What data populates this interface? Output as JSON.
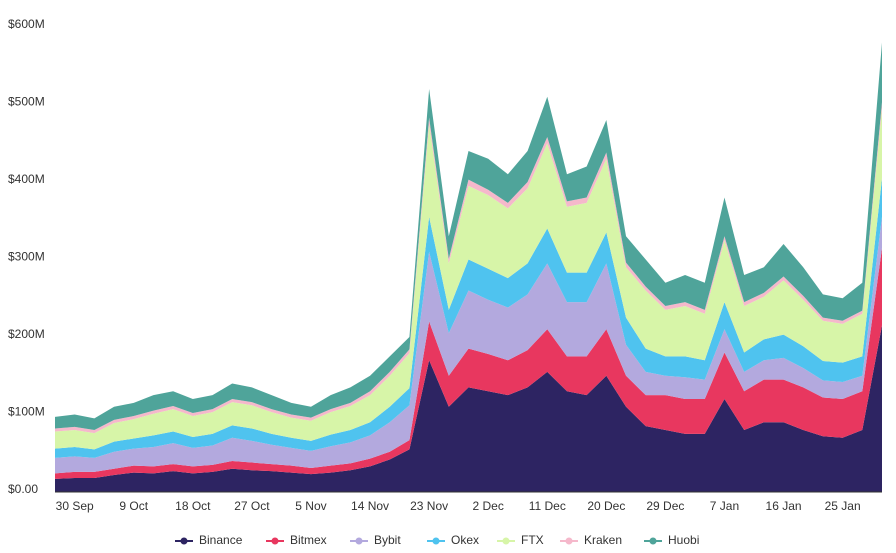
{
  "chart_data": {
    "type": "stacked_area",
    "categories": [
      null,
      "30 Sep",
      null,
      null,
      "9 Oct",
      null,
      null,
      "18 Oct",
      null,
      null,
      "27 Oct",
      null,
      null,
      "5 Nov",
      null,
      null,
      "14 Nov",
      null,
      null,
      "23 Nov",
      null,
      null,
      "2 Dec",
      null,
      null,
      "11 Dec",
      null,
      null,
      "20 Dec",
      null,
      null,
      "29 Dec",
      null,
      null,
      "7 Jan",
      null,
      null,
      "16 Jan",
      null,
      null,
      "25 Jan",
      null,
      null
    ],
    "series": [
      {
        "name": "Binance",
        "color": "#2d2462",
        "values": [
          17,
          18,
          18,
          22,
          25,
          24,
          27,
          24,
          26,
          30,
          28,
          27,
          25,
          23,
          25,
          28,
          33,
          42,
          55,
          170,
          110,
          135,
          130,
          125,
          135,
          155,
          130,
          125,
          150,
          110,
          85,
          80,
          75,
          75,
          120,
          80,
          90,
          90,
          80,
          72,
          70,
          80,
          215
        ]
      },
      {
        "name": "Bitmex",
        "color": "#e8375f",
        "values": [
          7,
          8,
          8,
          8,
          9,
          9,
          9,
          9,
          9,
          10,
          10,
          9,
          9,
          8,
          9,
          9,
          10,
          10,
          12,
          50,
          40,
          50,
          48,
          45,
          48,
          55,
          45,
          50,
          60,
          40,
          40,
          45,
          45,
          45,
          60,
          50,
          55,
          55,
          55,
          50,
          50,
          50,
          100
        ]
      },
      {
        "name": "Bybit",
        "color": "#b3a9de",
        "values": [
          20,
          20,
          18,
          22,
          22,
          25,
          27,
          24,
          25,
          30,
          28,
          25,
          23,
          22,
          25,
          27,
          30,
          38,
          45,
          90,
          55,
          75,
          70,
          68,
          72,
          85,
          70,
          70,
          85,
          40,
          30,
          25,
          28,
          25,
          30,
          25,
          25,
          28,
          25,
          22,
          22,
          20,
          40
        ]
      },
      {
        "name": "Okex",
        "color": "#4fc3ef",
        "values": [
          12,
          12,
          11,
          13,
          13,
          15,
          15,
          14,
          15,
          16,
          16,
          14,
          13,
          13,
          15,
          16,
          17,
          20,
          22,
          45,
          30,
          40,
          40,
          38,
          40,
          45,
          38,
          38,
          40,
          35,
          30,
          25,
          27,
          25,
          35,
          25,
          27,
          30,
          28,
          25,
          25,
          25,
          50
        ]
      },
      {
        "name": "FTX",
        "color": "#d7f5a8",
        "values": [
          22,
          22,
          21,
          24,
          25,
          28,
          29,
          27,
          28,
          30,
          30,
          28,
          26,
          26,
          29,
          31,
          35,
          40,
          45,
          120,
          60,
          95,
          95,
          90,
          97,
          110,
          85,
          90,
          95,
          65,
          75,
          60,
          65,
          60,
          80,
          60,
          55,
          70,
          60,
          52,
          50,
          55,
          90
        ]
      },
      {
        "name": "Kraken",
        "color": "#f5b8cb",
        "values": [
          4,
          4,
          4,
          4,
          4,
          4,
          4,
          4,
          4,
          4,
          4,
          4,
          4,
          4,
          4,
          4,
          5,
          5,
          5,
          8,
          6,
          8,
          7,
          7,
          8,
          8,
          7,
          7,
          8,
          6,
          5,
          5,
          5,
          5,
          5,
          5,
          5,
          5,
          5,
          4,
          4,
          4,
          8
        ]
      },
      {
        "name": "Huobi",
        "color": "#4fa49a",
        "values": [
          15,
          16,
          15,
          17,
          17,
          20,
          19,
          18,
          18,
          20,
          19,
          18,
          15,
          14,
          18,
          20,
          20,
          20,
          16,
          37,
          29,
          37,
          40,
          37,
          40,
          52,
          35,
          40,
          42,
          34,
          35,
          30,
          35,
          35,
          50,
          35,
          33,
          42,
          37,
          30,
          29,
          36,
          77
        ]
      }
    ],
    "ylim": [
      0,
      600
    ],
    "yticks": [
      {
        "value": 0,
        "label": "$0.00"
      },
      {
        "value": 100,
        "label": "$100M"
      },
      {
        "value": 200,
        "label": "$200M"
      },
      {
        "value": 300,
        "label": "$300M"
      },
      {
        "value": 400,
        "label": "$400M"
      },
      {
        "value": 500,
        "label": "$500M"
      },
      {
        "value": 600,
        "label": "$600M"
      }
    ],
    "grid": false,
    "legend": "bottom"
  }
}
